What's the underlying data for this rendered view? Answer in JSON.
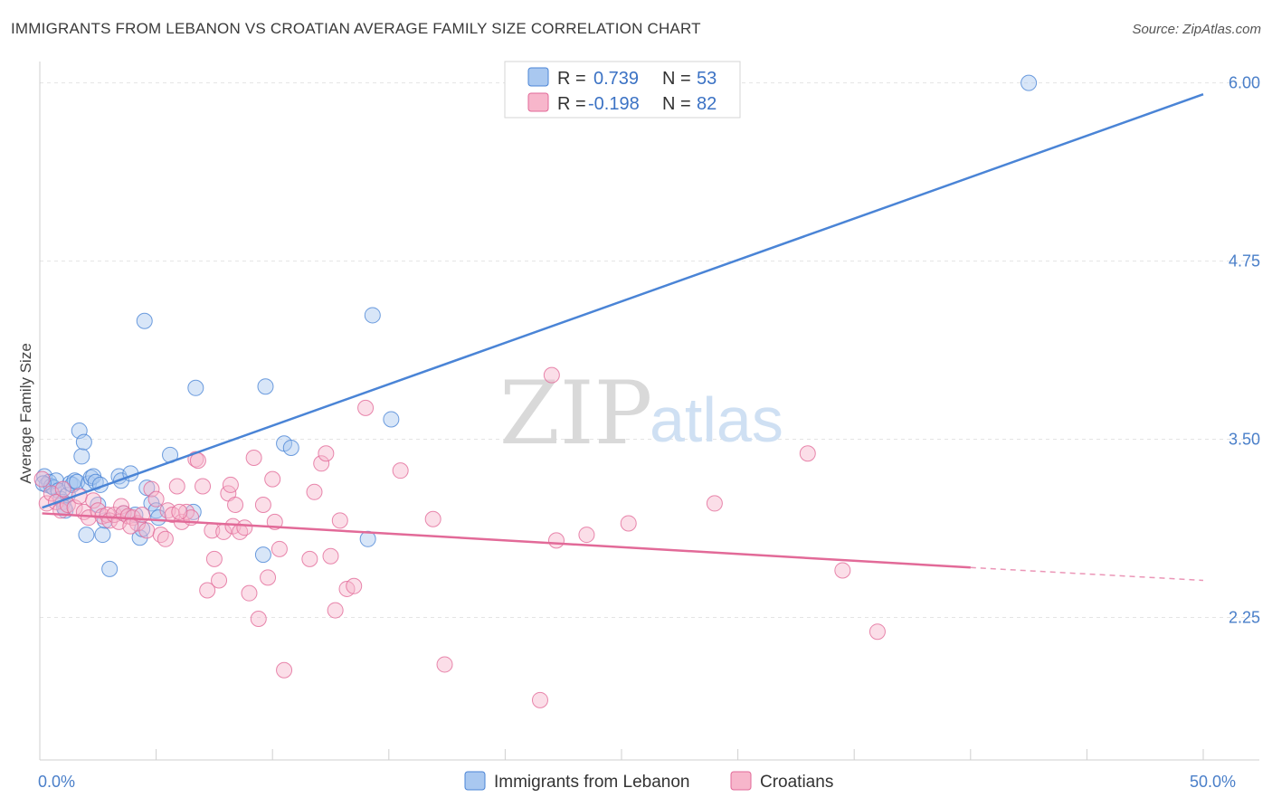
{
  "title": "IMMIGRANTS FROM LEBANON VS CROATIAN AVERAGE FAMILY SIZE CORRELATION CHART",
  "source": "Source: ZipAtlas.com",
  "watermark": {
    "zip": "ZIP",
    "atlas": "atlas"
  },
  "chart_data": {
    "type": "scatter",
    "title": "IMMIGRANTS FROM LEBANON VS CROATIAN AVERAGE FAMILY SIZE CORRELATION CHART",
    "ylabel": "Average Family Size",
    "xlabel": "",
    "xlim": [
      0,
      50
    ],
    "ylim": [
      1.25,
      6.15
    ],
    "y_ticks": [
      {
        "value": 6.0,
        "label": "6.00"
      },
      {
        "value": 4.75,
        "label": "4.75"
      },
      {
        "value": 3.5,
        "label": "3.50"
      },
      {
        "value": 2.25,
        "label": "2.25"
      }
    ],
    "x_ticks": [
      0,
      5,
      10,
      15,
      20,
      25,
      30,
      35,
      40,
      45,
      50
    ],
    "x_tick_labels": {
      "left": "0.0%",
      "right": "50.0%"
    },
    "grid": true,
    "legend_stats": [
      {
        "r_label": "R = ",
        "r": "0.739",
        "n_label": "N = ",
        "n": "53"
      },
      {
        "r_label": "R = ",
        "r": "-0.198",
        "n_label": "N = ",
        "n": "82"
      }
    ],
    "series": [
      {
        "name": "Immigrants from Lebanon",
        "color": "#4a84d6",
        "fill": "#a9c8f0",
        "trend": {
          "x0": 0.1,
          "y0": 3.02,
          "x1": 50,
          "y1": 5.92
        },
        "points": [
          [
            0.2,
            3.24
          ],
          [
            0.3,
            3.18
          ],
          [
            0.4,
            3.2
          ],
          [
            0.5,
            3.17
          ],
          [
            0.6,
            3.16
          ],
          [
            0.7,
            3.21
          ],
          [
            0.8,
            3.14
          ],
          [
            0.9,
            3.08
          ],
          [
            1.0,
            3.06
          ],
          [
            1.1,
            3.0
          ],
          [
            1.2,
            3.11
          ],
          [
            1.3,
            3.19
          ],
          [
            1.4,
            3.18
          ],
          [
            1.5,
            3.21
          ],
          [
            1.6,
            3.2
          ],
          [
            1.7,
            3.56
          ],
          [
            1.8,
            3.38
          ],
          [
            1.9,
            3.48
          ],
          [
            2.0,
            2.83
          ],
          [
            2.1,
            3.19
          ],
          [
            2.2,
            3.23
          ],
          [
            2.3,
            3.24
          ],
          [
            2.4,
            3.2
          ],
          [
            2.5,
            3.04
          ],
          [
            2.6,
            3.18
          ],
          [
            2.7,
            2.83
          ],
          [
            2.8,
            2.93
          ],
          [
            3.0,
            2.59
          ],
          [
            3.4,
            3.24
          ],
          [
            3.5,
            3.21
          ],
          [
            3.6,
            2.98
          ],
          [
            3.9,
            3.26
          ],
          [
            4.1,
            2.97
          ],
          [
            4.3,
            2.81
          ],
          [
            4.4,
            2.87
          ],
          [
            4.5,
            4.33
          ],
          [
            4.6,
            3.16
          ],
          [
            4.8,
            3.05
          ],
          [
            5.0,
            3.0
          ],
          [
            5.1,
            2.95
          ],
          [
            5.6,
            3.39
          ],
          [
            6.6,
            2.99
          ],
          [
            6.7,
            3.86
          ],
          [
            9.6,
            2.69
          ],
          [
            9.7,
            3.87
          ],
          [
            10.5,
            3.47
          ],
          [
            10.8,
            3.44
          ],
          [
            14.1,
            2.8
          ],
          [
            14.3,
            4.37
          ],
          [
            15.1,
            3.64
          ],
          [
            42.5,
            6.0
          ],
          [
            0.15,
            3.19
          ],
          [
            1.05,
            3.02
          ]
        ]
      },
      {
        "name": "Croatians",
        "color": "#e26a98",
        "fill": "#f7b6cb",
        "trend": {
          "x0": 0.1,
          "y0": 2.98,
          "x1": 40.0,
          "y1": 2.6
        },
        "trend_dashed": {
          "x0": 40.0,
          "y0": 2.6,
          "x1": 50.0,
          "y1": 2.51
        },
        "points": [
          [
            0.1,
            3.22
          ],
          [
            0.3,
            3.05
          ],
          [
            0.5,
            3.12
          ],
          [
            0.7,
            3.06
          ],
          [
            0.9,
            3.0
          ],
          [
            1.0,
            3.15
          ],
          [
            1.2,
            3.04
          ],
          [
            1.5,
            3.02
          ],
          [
            1.7,
            3.1
          ],
          [
            1.9,
            2.99
          ],
          [
            2.1,
            2.95
          ],
          [
            2.3,
            3.07
          ],
          [
            2.5,
            3.0
          ],
          [
            2.7,
            2.96
          ],
          [
            2.9,
            2.97
          ],
          [
            3.0,
            2.93
          ],
          [
            3.2,
            2.97
          ],
          [
            3.4,
            2.92
          ],
          [
            3.5,
            3.03
          ],
          [
            3.6,
            2.98
          ],
          [
            3.8,
            2.96
          ],
          [
            4.0,
            2.95
          ],
          [
            4.2,
            2.91
          ],
          [
            4.4,
            2.97
          ],
          [
            4.6,
            2.86
          ],
          [
            4.8,
            3.15
          ],
          [
            5.0,
            3.08
          ],
          [
            5.2,
            2.83
          ],
          [
            5.4,
            2.8
          ],
          [
            5.5,
            3.0
          ],
          [
            5.7,
            2.97
          ],
          [
            5.9,
            3.17
          ],
          [
            6.1,
            2.92
          ],
          [
            6.3,
            2.99
          ],
          [
            6.5,
            2.95
          ],
          [
            6.7,
            3.36
          ],
          [
            6.8,
            3.35
          ],
          [
            7.0,
            3.17
          ],
          [
            7.2,
            2.44
          ],
          [
            7.4,
            2.86
          ],
          [
            7.5,
            2.66
          ],
          [
            7.7,
            2.51
          ],
          [
            7.9,
            2.85
          ],
          [
            8.1,
            3.12
          ],
          [
            8.2,
            3.18
          ],
          [
            8.3,
            2.89
          ],
          [
            8.4,
            3.04
          ],
          [
            8.6,
            2.85
          ],
          [
            8.8,
            2.88
          ],
          [
            9.0,
            2.42
          ],
          [
            9.2,
            3.37
          ],
          [
            9.4,
            2.24
          ],
          [
            9.6,
            3.04
          ],
          [
            9.8,
            2.53
          ],
          [
            10.0,
            3.22
          ],
          [
            10.1,
            2.92
          ],
          [
            10.3,
            2.73
          ],
          [
            10.5,
            1.88
          ],
          [
            11.6,
            2.66
          ],
          [
            11.8,
            3.13
          ],
          [
            12.1,
            3.33
          ],
          [
            12.3,
            3.4
          ],
          [
            12.5,
            2.68
          ],
          [
            12.7,
            2.3
          ],
          [
            13.2,
            2.45
          ],
          [
            13.5,
            2.47
          ],
          [
            14.0,
            3.72
          ],
          [
            15.5,
            3.28
          ],
          [
            16.9,
            2.94
          ],
          [
            17.4,
            1.92
          ],
          [
            22.0,
            3.95
          ],
          [
            22.2,
            2.79
          ],
          [
            23.5,
            2.83
          ],
          [
            25.3,
            2.91
          ],
          [
            29.0,
            3.05
          ],
          [
            33.0,
            3.4
          ],
          [
            34.5,
            2.58
          ],
          [
            36.0,
            2.15
          ],
          [
            21.5,
            1.67
          ],
          [
            12.9,
            2.93
          ],
          [
            6.0,
            2.99
          ],
          [
            3.9,
            2.89
          ]
        ]
      }
    ]
  }
}
